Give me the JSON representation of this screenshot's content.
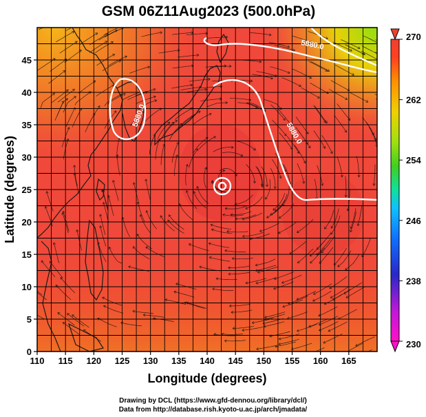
{
  "chart_data": {
    "type": "heatmap",
    "title": "GSM 06Z11Aug2023 (500.0hPa)",
    "xlabel": "Longitude (degrees)",
    "ylabel": "Latitude  (degrees)",
    "xlim": [
      110,
      170
    ],
    "ylim": [
      0,
      50
    ],
    "xticks": [
      110,
      115,
      120,
      125,
      130,
      135,
      140,
      145,
      150,
      155,
      160,
      165
    ],
    "yticks": [
      0,
      5,
      10,
      15,
      20,
      25,
      30,
      35,
      40,
      45
    ],
    "grid": true,
    "colorbar": {
      "min": 230,
      "max": 270,
      "ticks": [
        230,
        238,
        246,
        254,
        262,
        270
      ],
      "colors": [
        "#ff10c8",
        "#c018d8",
        "#2828c8",
        "#1070ff",
        "#10c0ff",
        "#10e0a0",
        "#40d020",
        "#a0e010",
        "#f0d000",
        "#ff9000",
        "#ff4020",
        "#f04030"
      ]
    },
    "contours": [
      {
        "label": "5880.0",
        "label_lon": 158.5,
        "label_lat": 47.0
      },
      {
        "label": "5880.0",
        "label_lon": 155.0,
        "label_lat": 33.5
      },
      {
        "label": "5880.0",
        "label_lon": 128.3,
        "label_lat": 36.3
      }
    ],
    "typhoon_center": {
      "lon": 142.5,
      "lat": 27.3
    },
    "background_color": "#f0483a"
  },
  "credits": {
    "line1": "Drawing by DCL (https://www.gfd-dennou.org/library/dcl/)",
    "line2": "Data from http://database.rish.kyoto-u.ac.jp/arch/jmadata/"
  }
}
